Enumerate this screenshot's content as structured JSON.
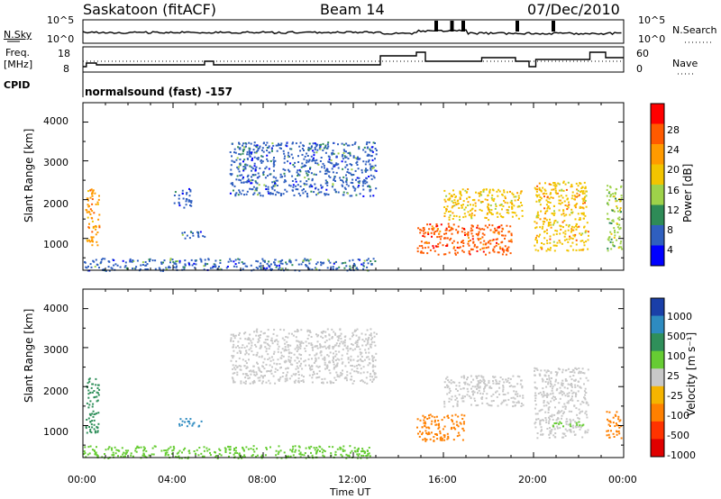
{
  "header": {
    "title_left": "Saskatoon (fitACF)",
    "title_center": "Beam 14",
    "title_right": "07/Dec/2010"
  },
  "params": {
    "nsky_label": "N.Sky",
    "freq_label_1": "Freq.",
    "freq_label_2": "[MHz]",
    "cpid_label": "CPID",
    "nsearch_label": "N.Search",
    "nave_label": "Nave",
    "noise_ticks_left": [
      "10^5",
      "10^0"
    ],
    "noise_ticks_right": [
      "10^5",
      "10^0"
    ],
    "freq_ticks": [
      "18",
      "8"
    ],
    "nave_ticks": [
      "60",
      "0"
    ],
    "cpid_text": "normalsound (fast) -157"
  },
  "axes": {
    "ylabel": "Slant Range [km]",
    "yticks": [
      "4000",
      "3000",
      "2000",
      "1000"
    ],
    "xticks": [
      "00:00",
      "04:00",
      "08:00",
      "12:00",
      "16:00",
      "20:00",
      "00:00"
    ],
    "xlabel": "Time UT"
  },
  "power_colorbar": {
    "label": "Power [dB]",
    "ticks": [
      "28",
      "24",
      "20",
      "16",
      "12",
      "8",
      "4"
    ],
    "colors": [
      "#ff0000",
      "#ff5a00",
      "#ff9a00",
      "#f2c400",
      "#9ed24a",
      "#2e8b57",
      "#2f5fbf",
      "#0000ff"
    ]
  },
  "velocity_colorbar": {
    "label": "Velocity [m s⁻¹]",
    "ticks": [
      "1000",
      "500",
      "100",
      "25",
      "-25",
      "-100",
      "-500",
      "-1000"
    ],
    "colors": [
      "#1a3fa8",
      "#2e8bc0",
      "#2f8f5a",
      "#66cc33",
      "#c8c8c8",
      "#f5b400",
      "#ff8000",
      "#ff3300",
      "#e00000"
    ]
  },
  "chart_data": [
    {
      "type": "heatmap",
      "title": "Power",
      "xlabel": "Time UT",
      "ylabel": "Slant Range [km]",
      "xlim": [
        "00:00",
        "24:00"
      ],
      "ylim": [
        180,
        4500
      ],
      "colorbar_label": "Power [dB]",
      "colorbar_range": [
        0,
        32
      ],
      "echo_regions": [
        {
          "t_start": 0.1,
          "t_end": 0.7,
          "r_start": 800,
          "r_end": 2300,
          "value_db": 22
        },
        {
          "t_start": 6.5,
          "t_end": 13.0,
          "r_start": 2100,
          "r_end": 3500,
          "value_db": 8
        },
        {
          "t_start": 4.0,
          "t_end": 4.8,
          "r_start": 1800,
          "r_end": 2300,
          "value_db": 6
        },
        {
          "t_start": 4.2,
          "t_end": 5.4,
          "r_start": 1000,
          "r_end": 1200,
          "value_db": 8
        },
        {
          "t_start": 14.8,
          "t_end": 19.0,
          "r_start": 600,
          "r_end": 1400,
          "value_db": 26
        },
        {
          "t_start": 16.0,
          "t_end": 19.5,
          "r_start": 1500,
          "r_end": 2300,
          "value_db": 18
        },
        {
          "t_start": 20.0,
          "t_end": 22.4,
          "r_start": 700,
          "r_end": 2500,
          "value_db": 20
        },
        {
          "t_start": 23.2,
          "t_end": 23.9,
          "r_start": 700,
          "r_end": 2400,
          "value_db": 14
        },
        {
          "t_start": 0.0,
          "t_end": 13.0,
          "r_start": 180,
          "r_end": 500,
          "value_db": 8
        }
      ]
    },
    {
      "type": "heatmap",
      "title": "Velocity",
      "xlabel": "Time UT",
      "ylabel": "Slant Range [km]",
      "xlim": [
        "00:00",
        "24:00"
      ],
      "ylim": [
        180,
        4500
      ],
      "colorbar_label": "Velocity [m s⁻¹]",
      "colorbar_range": [
        -1000,
        1000
      ],
      "echo_regions": [
        {
          "t_start": 0.1,
          "t_end": 0.7,
          "r_start": 800,
          "r_end": 2300,
          "value_ms": 200
        },
        {
          "t_start": 6.5,
          "t_end": 13.0,
          "r_start": 2100,
          "r_end": 3500,
          "value_ms": 0
        },
        {
          "t_start": 4.2,
          "t_end": 5.4,
          "r_start": 1000,
          "r_end": 1200,
          "value_ms": 600
        },
        {
          "t_start": 14.8,
          "t_end": 16.9,
          "r_start": 600,
          "r_end": 1300,
          "value_ms": -150
        },
        {
          "t_start": 16.0,
          "t_end": 19.5,
          "r_start": 1500,
          "r_end": 2300,
          "value_ms": 0
        },
        {
          "t_start": 20.0,
          "t_end": 22.4,
          "r_start": 700,
          "r_end": 2500,
          "value_ms": 0
        },
        {
          "t_start": 20.8,
          "t_end": 22.2,
          "r_start": 1000,
          "r_end": 1150,
          "value_ms": 80
        },
        {
          "t_start": 23.2,
          "t_end": 23.9,
          "r_start": 700,
          "r_end": 1400,
          "value_ms": -200
        },
        {
          "t_start": 0.0,
          "t_end": 13.0,
          "r_start": 180,
          "r_end": 500,
          "value_ms": 60
        }
      ]
    }
  ]
}
